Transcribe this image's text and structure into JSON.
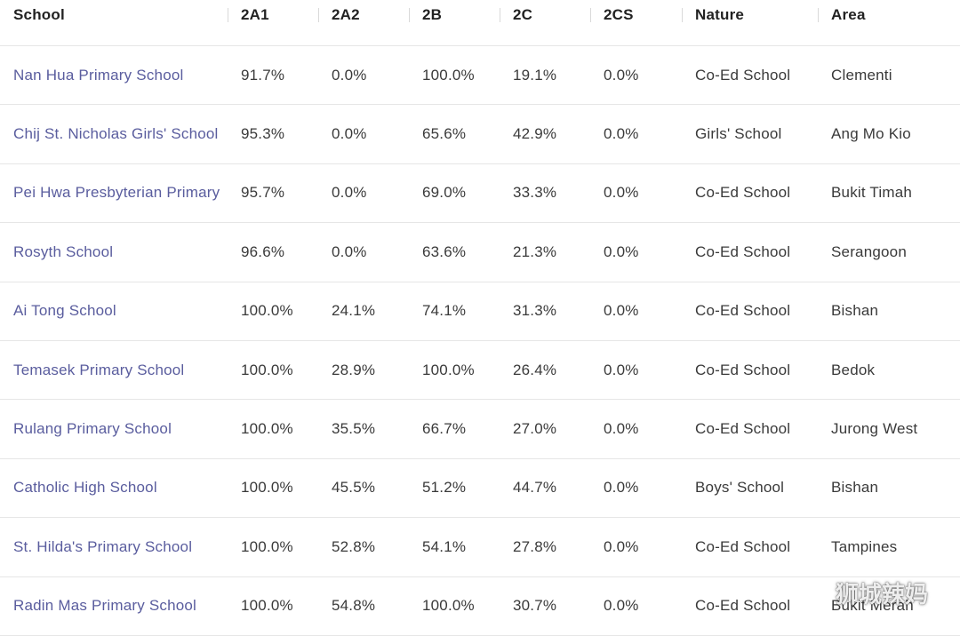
{
  "table": {
    "headers": {
      "school": "School",
      "a1": "2A1",
      "a2": "2A2",
      "b": "2B",
      "c": "2C",
      "cs": "2CS",
      "nature": "Nature",
      "area": "Area"
    },
    "rows": [
      {
        "school": "Nan Hua Primary School",
        "a1": "91.7%",
        "a2": "0.0%",
        "b": "100.0%",
        "c": "19.1%",
        "cs": "0.0%",
        "nature": "Co-Ed School",
        "area": "Clementi"
      },
      {
        "school": "Chij St. Nicholas Girls' School",
        "a1": "95.3%",
        "a2": "0.0%",
        "b": "65.6%",
        "c": "42.9%",
        "cs": "0.0%",
        "nature": "Girls' School",
        "area": "Ang Mo Kio"
      },
      {
        "school": "Pei Hwa Presbyterian Primary School",
        "a1": "95.7%",
        "a2": "0.0%",
        "b": "69.0%",
        "c": "33.3%",
        "cs": "0.0%",
        "nature": "Co-Ed School",
        "area": "Bukit Timah"
      },
      {
        "school": "Rosyth School",
        "a1": "96.6%",
        "a2": "0.0%",
        "b": "63.6%",
        "c": "21.3%",
        "cs": "0.0%",
        "nature": "Co-Ed School",
        "area": "Serangoon"
      },
      {
        "school": "Ai Tong School",
        "a1": "100.0%",
        "a2": "24.1%",
        "b": "74.1%",
        "c": "31.3%",
        "cs": "0.0%",
        "nature": "Co-Ed School",
        "area": "Bishan"
      },
      {
        "school": "Temasek Primary School",
        "a1": "100.0%",
        "a2": "28.9%",
        "b": "100.0%",
        "c": "26.4%",
        "cs": "0.0%",
        "nature": "Co-Ed School",
        "area": "Bedok"
      },
      {
        "school": "Rulang Primary School",
        "a1": "100.0%",
        "a2": "35.5%",
        "b": "66.7%",
        "c": "27.0%",
        "cs": "0.0%",
        "nature": "Co-Ed School",
        "area": "Jurong West"
      },
      {
        "school": "Catholic High School",
        "a1": "100.0%",
        "a2": "45.5%",
        "b": "51.2%",
        "c": "44.7%",
        "cs": "0.0%",
        "nature": "Boys' School",
        "area": "Bishan"
      },
      {
        "school": "St. Hilda's Primary School",
        "a1": "100.0%",
        "a2": "52.8%",
        "b": "54.1%",
        "c": "27.8%",
        "cs": "0.0%",
        "nature": "Co-Ed School",
        "area": "Tampines"
      },
      {
        "school": "Radin Mas Primary School",
        "a1": "100.0%",
        "a2": "54.8%",
        "b": "100.0%",
        "c": "30.7%",
        "cs": "0.0%",
        "nature": "Co-Ed School",
        "area": "Bukit Merah"
      }
    ]
  },
  "watermark": {
    "text": "狮城辣妈",
    "icon": "wechat-icon"
  },
  "colors": {
    "link": "#5a5d9e",
    "text": "#3a3a3a",
    "divider": "#e6e6e6"
  }
}
